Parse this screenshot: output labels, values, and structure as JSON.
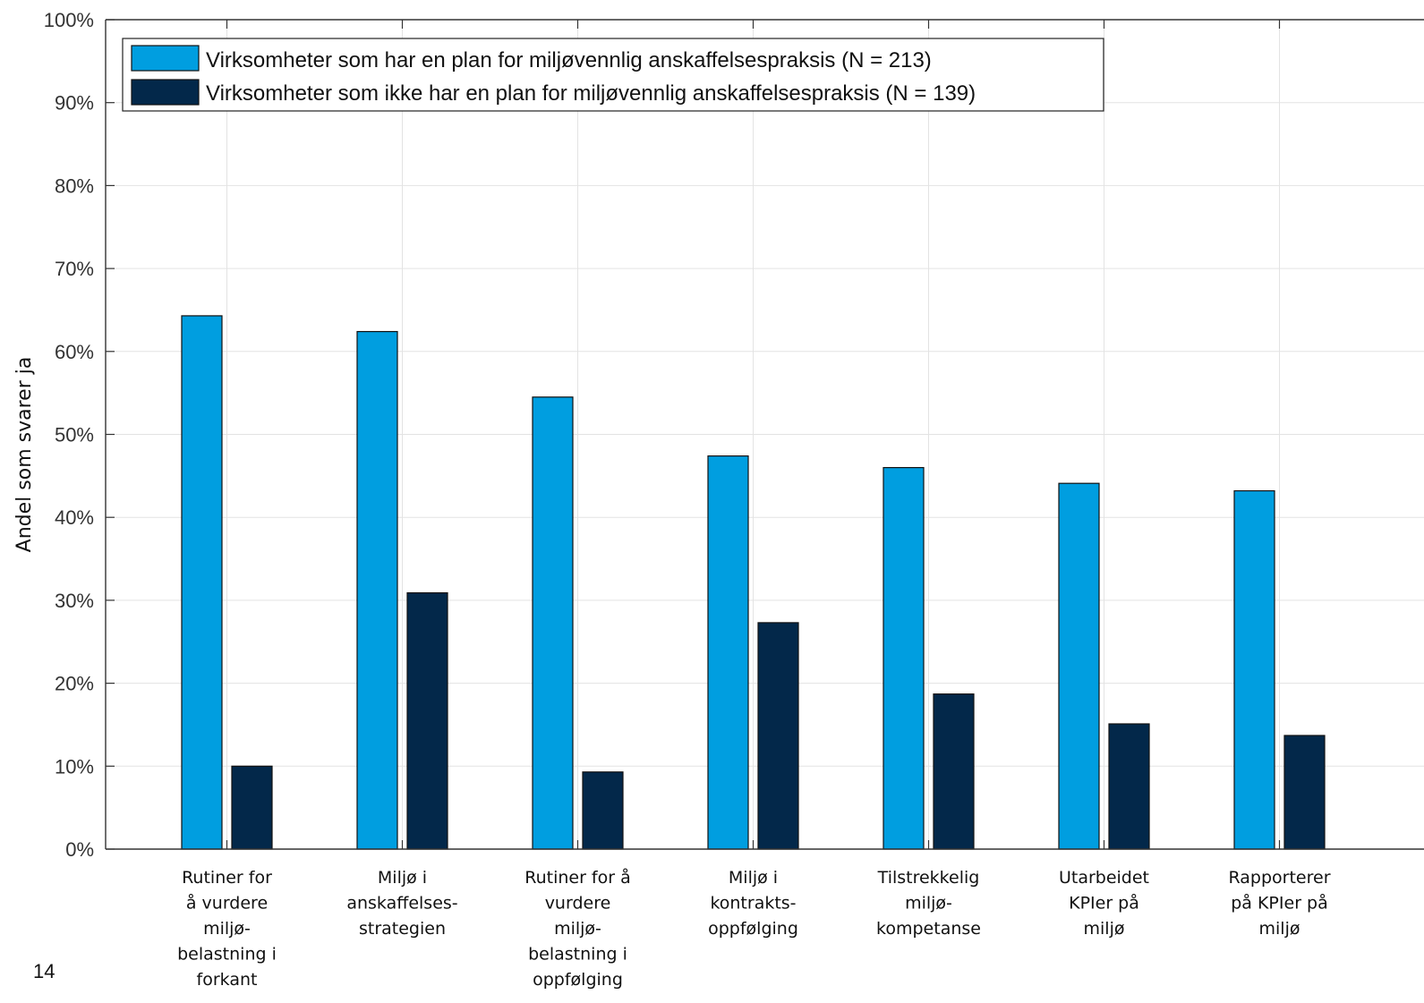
{
  "page_number": "14",
  "chart_data": {
    "type": "bar",
    "ylabel": "Andel som svarer ja",
    "xlabel": "",
    "ylim": [
      0,
      100
    ],
    "yticks": [
      "0%",
      "10%",
      "20%",
      "30%",
      "40%",
      "50%",
      "60%",
      "70%",
      "80%",
      "90%",
      "100%"
    ],
    "grid": true,
    "legend_position": "top-left",
    "categories": [
      [
        "Rutiner for",
        "å vurdere",
        "miljø-",
        "belastning i",
        "forkant"
      ],
      [
        "Miljø i",
        "anskaffelses-",
        "strategien"
      ],
      [
        "Rutiner for å",
        "vurdere",
        "miljø-",
        "belastning i",
        "oppfølging"
      ],
      [
        "Miljø i",
        "kontrakts-",
        "oppfølging"
      ],
      [
        "Tilstrekkelig",
        "miljø-",
        "kompetanse"
      ],
      [
        "Utarbeidet",
        "KPIer på",
        "miljø"
      ],
      [
        "Rapporterer",
        "på KPIer på",
        "miljø"
      ]
    ],
    "series": [
      {
        "name": "Virksomheter som har en plan for miljøvennlig anskaffelsespraksis (N = 213)",
        "color": "#009ee0",
        "values": [
          64.3,
          62.4,
          54.5,
          47.4,
          46.0,
          44.1,
          43.2
        ]
      },
      {
        "name": "Virksomheter som ikke har en plan for miljøvennlig anskaffelsespraksis (N = 139)",
        "color": "#03284a",
        "values": [
          10.0,
          30.9,
          9.3,
          27.3,
          18.7,
          15.1,
          13.7
        ]
      }
    ]
  }
}
